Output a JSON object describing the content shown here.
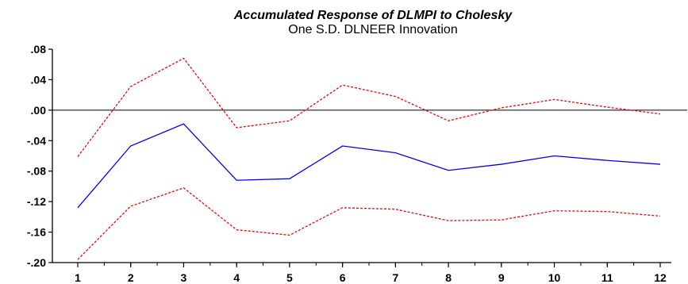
{
  "chart_data": {
    "type": "line",
    "title": "Accumulated Response of DLMPI to Cholesky",
    "subtitle": "One S.D. DLNEER Innovation",
    "x": [
      1,
      2,
      3,
      4,
      5,
      6,
      7,
      8,
      9,
      10,
      11,
      12
    ],
    "x_tick_labels": [
      "1",
      "2",
      "3",
      "4",
      "5",
      "6",
      "7",
      "8",
      "9",
      "10",
      "11",
      "12"
    ],
    "ylim": [
      -0.2,
      0.08
    ],
    "y_ticks": [
      0.08,
      0.04,
      0.0,
      -0.04,
      -0.08,
      -0.12,
      -0.16,
      -0.2
    ],
    "y_tick_labels": [
      ".08",
      ".04",
      ".00",
      "-.04",
      "-.08",
      "-.12",
      "-.16",
      "-.20"
    ],
    "zero_line": true,
    "series": [
      {
        "role": "response",
        "color": "#0000ff",
        "style": "solid",
        "values": [
          -0.128,
          -0.047,
          -0.018,
          -0.092,
          -0.09,
          -0.047,
          -0.056,
          -0.079,
          -0.071,
          -0.06,
          -0.066,
          -0.071
        ]
      },
      {
        "role": "upper band",
        "color": "#ff0000",
        "style": "dashed",
        "values": [
          -0.061,
          0.031,
          0.068,
          -0.023,
          -0.014,
          0.033,
          0.018,
          -0.014,
          0.003,
          0.014,
          0.004,
          -0.005
        ]
      },
      {
        "role": "lower band",
        "color": "#ff0000",
        "style": "dashed",
        "values": [
          -0.196,
          -0.126,
          -0.102,
          -0.157,
          -0.164,
          -0.128,
          -0.13,
          -0.145,
          -0.144,
          -0.132,
          -0.133,
          -0.139
        ]
      }
    ]
  }
}
